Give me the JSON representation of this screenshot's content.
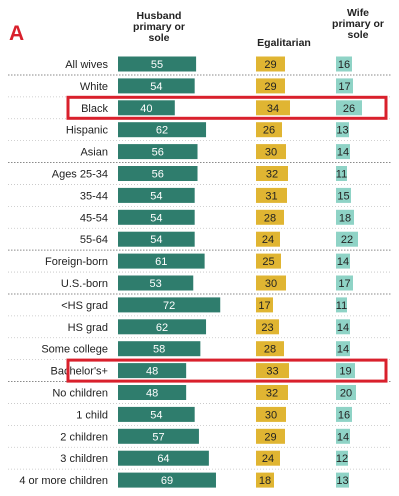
{
  "panel_label": "A",
  "chart_data": {
    "type": "bar",
    "headers": {
      "husband": "Husband\nprimary or\nsole",
      "egalitarian": "Egalitarian",
      "wife": "Wife\nprimary or\nsole"
    },
    "categories": [
      "All wives",
      "White",
      "Black",
      "Hispanic",
      "Asian",
      "Ages 25-34",
      "35-44",
      "45-54",
      "55-64",
      "Foreign-born",
      "U.S.-born",
      "<HS grad",
      "HS grad",
      "Some college",
      "Bachelor's+",
      "No children",
      "1 child",
      "2 children",
      "3 children",
      "4 or more children"
    ],
    "series": [
      {
        "name": "Husband primary or sole",
        "color": "#2f7d6d",
        "values": [
          55,
          54,
          40,
          62,
          56,
          56,
          54,
          54,
          54,
          61,
          53,
          72,
          62,
          58,
          48,
          48,
          54,
          57,
          64,
          69
        ]
      },
      {
        "name": "Egalitarian",
        "color": "#e0b532",
        "values": [
          29,
          29,
          34,
          26,
          30,
          32,
          31,
          28,
          24,
          25,
          30,
          17,
          23,
          28,
          33,
          32,
          30,
          29,
          24,
          18
        ]
      },
      {
        "name": "Wife primary or sole",
        "color": "#8fd3c6",
        "values": [
          16,
          17,
          26,
          13,
          14,
          11,
          15,
          18,
          22,
          14,
          17,
          11,
          14,
          14,
          19,
          20,
          16,
          14,
          12,
          13
        ]
      }
    ],
    "highlighted": [
      "Black",
      "Bachelor's+"
    ],
    "dividers_after": [
      "All wives",
      "Asian",
      "55-64",
      "U.S.-born",
      "Bachelor's+"
    ],
    "highlight_color": "#d9202c"
  }
}
